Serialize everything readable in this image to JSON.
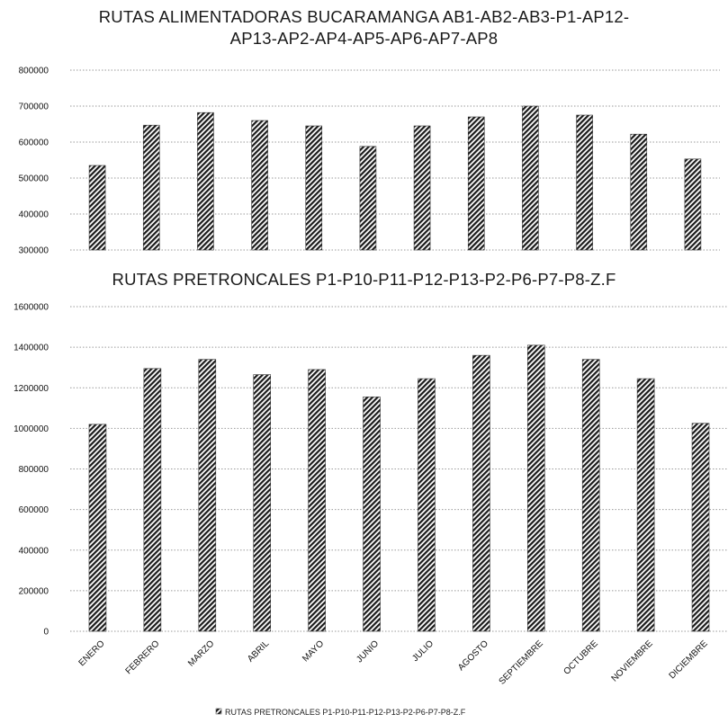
{
  "chart_data": [
    {
      "type": "bar",
      "title_line1": "RUTAS ALIMENTADORAS BUCARAMANGA AB1-AB2-AB3-P1-AP12-",
      "title_line2": "AP13-AP2-AP4-AP5-AP6-AP7-AP8",
      "ylim": [
        300000,
        800000
      ],
      "yticks": [
        "300000",
        "400000",
        "500000",
        "600000",
        "700000",
        "800000"
      ],
      "grid": true,
      "categories": [
        "ENERO",
        "FEBRERO",
        "MARZO",
        "ABRIL",
        "MAYO",
        "JUNIO",
        "JULIO",
        "AGOSTO",
        "SEPTIEMBRE",
        "OCTUBRE",
        "NOVIEMBRE",
        "DICIEMBRE"
      ],
      "values": [
        535000,
        647000,
        682000,
        660000,
        645000,
        588000,
        645000,
        670000,
        700000,
        675000,
        622000,
        553000
      ]
    },
    {
      "type": "bar",
      "title": "RUTAS PRETRONCALES P1-P10-P11-P12-P13-P2-P6-P7-P8-Z.F",
      "ylim": [
        0,
        1600000
      ],
      "yticks": [
        "0",
        "200000",
        "400000",
        "600000",
        "800000",
        "1000000",
        "1200000",
        "1400000",
        "1600000"
      ],
      "grid": true,
      "categories": [
        "ENERO",
        "FEBRERO",
        "MARZO",
        "ABRIL",
        "MAYO",
        "JUNIO",
        "JULIO",
        "AGOSTO",
        "SEPTIEMBRE",
        "OCTUBRE",
        "NOVIEMBRE",
        "DICIEMBRE"
      ],
      "values": [
        1020000,
        1295000,
        1340000,
        1265000,
        1290000,
        1155000,
        1245000,
        1360000,
        1410000,
        1340000,
        1245000,
        1025000
      ],
      "legend": "RUTAS PRETRONCALES P1-P10-P11-P12-P13-P2-P6-P7-P8-Z.F"
    }
  ]
}
